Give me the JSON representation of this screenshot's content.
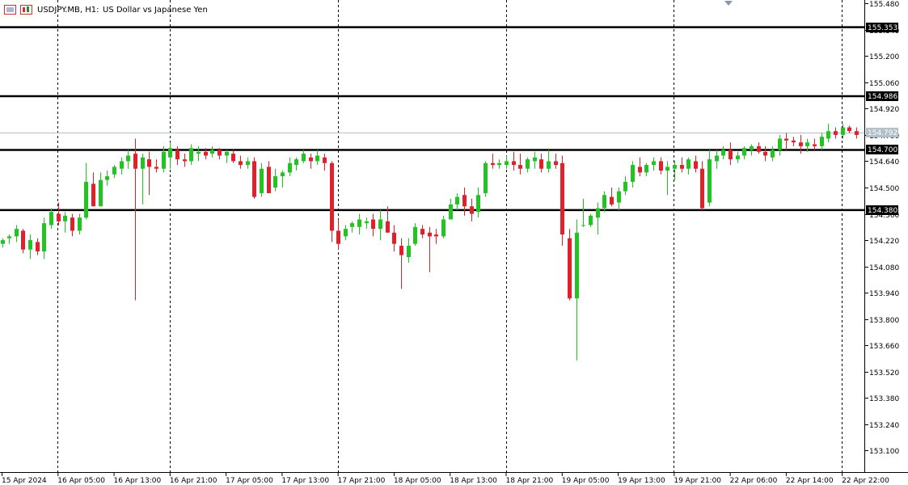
{
  "header": {
    "symbol_period": "USDJPY.MB, H1:",
    "description": "US Dollar vs Japanese Yen"
  },
  "colors": {
    "background": "#ffffff",
    "bull": "#22c322",
    "bear": "#e0202a",
    "bid_line": "#b4c0c8",
    "level_line": "#000000"
  },
  "chart_data": {
    "type": "candlestick",
    "symbol": "USDJPY.MB",
    "timeframe": "H1",
    "y_range": [
      152.99,
      155.485
    ],
    "y_ticks": [
      155.48,
      155.34,
      155.2,
      155.06,
      154.92,
      154.78,
      154.64,
      154.5,
      154.36,
      154.22,
      154.08,
      153.94,
      153.8,
      153.66,
      153.52,
      153.38,
      153.24,
      153.1
    ],
    "x_labels": [
      "15 Apr 2024",
      "16 Apr 05:00",
      "16 Apr 13:00",
      "16 Apr 21:00",
      "17 Apr 05:00",
      "17 Apr 13:00",
      "17 Apr 21:00",
      "18 Apr 05:00",
      "18 Apr 13:00",
      "18 Apr 21:00",
      "19 Apr 05:00",
      "19 Apr 13:00",
      "19 Apr 21:00",
      "22 Apr 06:00",
      "22 Apr 14:00",
      "22 Apr 22:00"
    ],
    "session_separators_at_label_index": [
      1,
      3,
      6,
      9,
      12,
      15
    ],
    "bid_price": 154.792,
    "horizontal_levels": [
      155.353,
      154.986,
      154.7,
      154.38
    ],
    "candles": [
      [
        154.2,
        154.23,
        154.18,
        154.22
      ],
      [
        154.23,
        154.25,
        154.2,
        154.24
      ],
      [
        154.24,
        154.3,
        154.21,
        154.28
      ],
      [
        154.27,
        154.28,
        154.15,
        154.17
      ],
      [
        154.17,
        154.25,
        154.12,
        154.22
      ],
      [
        154.21,
        154.23,
        154.14,
        154.16
      ],
      [
        154.16,
        154.34,
        154.12,
        154.31
      ],
      [
        154.3,
        154.39,
        154.28,
        154.37
      ],
      [
        154.36,
        154.42,
        154.3,
        154.32
      ],
      [
        154.32,
        154.37,
        154.26,
        154.35
      ],
      [
        154.34,
        154.36,
        154.24,
        154.27
      ],
      [
        154.27,
        154.36,
        154.25,
        154.34
      ],
      [
        154.34,
        154.63,
        154.33,
        154.53
      ],
      [
        154.52,
        154.58,
        154.4,
        154.4
      ],
      [
        154.4,
        154.58,
        154.4,
        154.54
      ],
      [
        154.54,
        154.59,
        154.51,
        154.56
      ],
      [
        154.57,
        154.62,
        154.55,
        154.61
      ],
      [
        154.6,
        154.66,
        154.57,
        154.64
      ],
      [
        154.64,
        154.7,
        154.6,
        154.67
      ],
      [
        154.68,
        154.76,
        153.9,
        154.6
      ],
      [
        154.6,
        154.68,
        154.41,
        154.66
      ],
      [
        154.65,
        154.69,
        154.46,
        154.61
      ],
      [
        154.61,
        154.65,
        154.58,
        154.6
      ],
      [
        154.6,
        154.72,
        154.58,
        154.69
      ],
      [
        154.66,
        154.74,
        154.6,
        154.71
      ],
      [
        154.7,
        154.72,
        154.62,
        154.65
      ],
      [
        154.65,
        154.68,
        154.61,
        154.64
      ],
      [
        154.64,
        154.73,
        154.62,
        154.71
      ],
      [
        154.68,
        154.72,
        154.64,
        154.69
      ],
      [
        154.69,
        154.71,
        154.65,
        154.67
      ],
      [
        154.68,
        154.72,
        154.66,
        154.7
      ],
      [
        154.7,
        154.71,
        154.65,
        154.67
      ],
      [
        154.67,
        154.7,
        154.63,
        154.69
      ],
      [
        154.68,
        154.7,
        154.63,
        154.64
      ],
      [
        154.64,
        154.67,
        154.6,
        154.62
      ],
      [
        154.62,
        154.66,
        154.6,
        154.64
      ],
      [
        154.64,
        154.66,
        154.44,
        154.45
      ],
      [
        154.47,
        154.63,
        154.45,
        154.6
      ],
      [
        154.61,
        154.64,
        154.47,
        154.47
      ],
      [
        154.5,
        154.6,
        154.48,
        154.56
      ],
      [
        154.56,
        154.59,
        154.5,
        154.58
      ],
      [
        154.58,
        154.66,
        154.56,
        154.63
      ],
      [
        154.62,
        154.66,
        154.59,
        154.65
      ],
      [
        154.64,
        154.7,
        154.63,
        154.68
      ],
      [
        154.66,
        154.68,
        154.6,
        154.64
      ],
      [
        154.64,
        154.7,
        154.62,
        154.67
      ],
      [
        154.66,
        154.68,
        154.59,
        154.63
      ],
      [
        154.63,
        154.64,
        154.21,
        154.27
      ],
      [
        154.27,
        154.33,
        154.17,
        154.2
      ],
      [
        154.24,
        154.3,
        154.22,
        154.28
      ],
      [
        154.29,
        154.32,
        154.26,
        154.31
      ],
      [
        154.29,
        154.36,
        154.25,
        154.33
      ],
      [
        154.31,
        154.34,
        154.28,
        154.32
      ],
      [
        154.33,
        154.36,
        154.24,
        154.28
      ],
      [
        154.28,
        154.38,
        154.22,
        154.33
      ],
      [
        154.32,
        154.4,
        154.26,
        154.26
      ],
      [
        154.26,
        154.3,
        154.16,
        154.2
      ],
      [
        154.19,
        154.23,
        153.96,
        154.14
      ],
      [
        154.13,
        154.23,
        154.1,
        154.19
      ],
      [
        154.2,
        154.31,
        154.19,
        154.29
      ],
      [
        154.28,
        154.3,
        154.23,
        154.25
      ],
      [
        154.26,
        154.29,
        154.05,
        154.24
      ],
      [
        154.25,
        154.28,
        154.2,
        154.24
      ],
      [
        154.24,
        154.35,
        154.23,
        154.33
      ],
      [
        154.33,
        154.44,
        154.33,
        154.41
      ],
      [
        154.41,
        154.47,
        154.38,
        154.45
      ],
      [
        154.46,
        154.5,
        154.35,
        154.4
      ],
      [
        154.4,
        154.44,
        154.32,
        154.36
      ],
      [
        154.37,
        154.5,
        154.34,
        154.46
      ],
      [
        154.47,
        154.64,
        154.45,
        154.63
      ],
      [
        154.63,
        154.68,
        154.6,
        154.62
      ],
      [
        154.62,
        154.65,
        154.6,
        154.63
      ],
      [
        154.62,
        154.67,
        154.6,
        154.64
      ],
      [
        154.64,
        154.69,
        154.59,
        154.62
      ],
      [
        154.62,
        154.68,
        154.57,
        154.6
      ],
      [
        154.6,
        154.66,
        154.58,
        154.65
      ],
      [
        154.64,
        154.69,
        154.6,
        154.66
      ],
      [
        154.65,
        154.68,
        154.58,
        154.6
      ],
      [
        154.6,
        154.7,
        154.58,
        154.64
      ],
      [
        154.64,
        154.68,
        154.6,
        154.62
      ],
      [
        154.63,
        154.67,
        154.19,
        154.25
      ],
      [
        154.23,
        154.28,
        153.9,
        153.91
      ],
      [
        153.91,
        154.33,
        153.58,
        154.26
      ],
      [
        154.3,
        154.44,
        154.29,
        154.3
      ],
      [
        154.3,
        154.36,
        154.29,
        154.35
      ],
      [
        154.34,
        154.42,
        154.25,
        154.39
      ],
      [
        154.39,
        154.48,
        154.37,
        154.46
      ],
      [
        154.45,
        154.5,
        154.4,
        154.41
      ],
      [
        154.42,
        154.5,
        154.38,
        154.48
      ],
      [
        154.48,
        154.56,
        154.46,
        154.53
      ],
      [
        154.53,
        154.64,
        154.5,
        154.62
      ],
      [
        154.61,
        154.66,
        154.56,
        154.58
      ],
      [
        154.58,
        154.63,
        154.56,
        154.62
      ],
      [
        154.62,
        154.66,
        154.59,
        154.64
      ],
      [
        154.64,
        154.66,
        154.57,
        154.59
      ],
      [
        154.59,
        154.64,
        154.46,
        154.61
      ],
      [
        154.6,
        154.64,
        154.54,
        154.62
      ],
      [
        154.62,
        154.66,
        154.58,
        154.6
      ],
      [
        154.6,
        154.66,
        154.57,
        154.65
      ],
      [
        154.64,
        154.67,
        154.58,
        154.6
      ],
      [
        154.6,
        154.64,
        154.38,
        154.39
      ],
      [
        154.42,
        154.7,
        154.4,
        154.65
      ],
      [
        154.64,
        154.7,
        154.6,
        154.67
      ],
      [
        154.67,
        154.72,
        154.65,
        154.7
      ],
      [
        154.7,
        154.74,
        154.62,
        154.65
      ],
      [
        154.65,
        154.69,
        154.63,
        154.67
      ],
      [
        154.67,
        154.72,
        154.65,
        154.71
      ],
      [
        154.7,
        154.73,
        154.67,
        154.72
      ],
      [
        154.72,
        154.74,
        154.68,
        154.69
      ],
      [
        154.69,
        154.72,
        154.64,
        154.67
      ],
      [
        154.66,
        154.72,
        154.64,
        154.7
      ],
      [
        154.7,
        154.78,
        154.67,
        154.76
      ],
      [
        154.76,
        154.79,
        154.7,
        154.75
      ],
      [
        154.75,
        154.77,
        154.72,
        154.74
      ],
      [
        154.74,
        154.78,
        154.68,
        154.72
      ],
      [
        154.72,
        154.76,
        154.69,
        154.74
      ],
      [
        154.73,
        154.76,
        154.7,
        154.72
      ],
      [
        154.72,
        154.79,
        154.7,
        154.77
      ],
      [
        154.76,
        154.84,
        154.74,
        154.8
      ],
      [
        154.8,
        154.82,
        154.76,
        154.78
      ],
      [
        154.78,
        154.84,
        154.76,
        154.82
      ],
      [
        154.82,
        154.83,
        154.79,
        154.8
      ],
      [
        154.8,
        154.82,
        154.76,
        154.78
      ]
    ]
  }
}
